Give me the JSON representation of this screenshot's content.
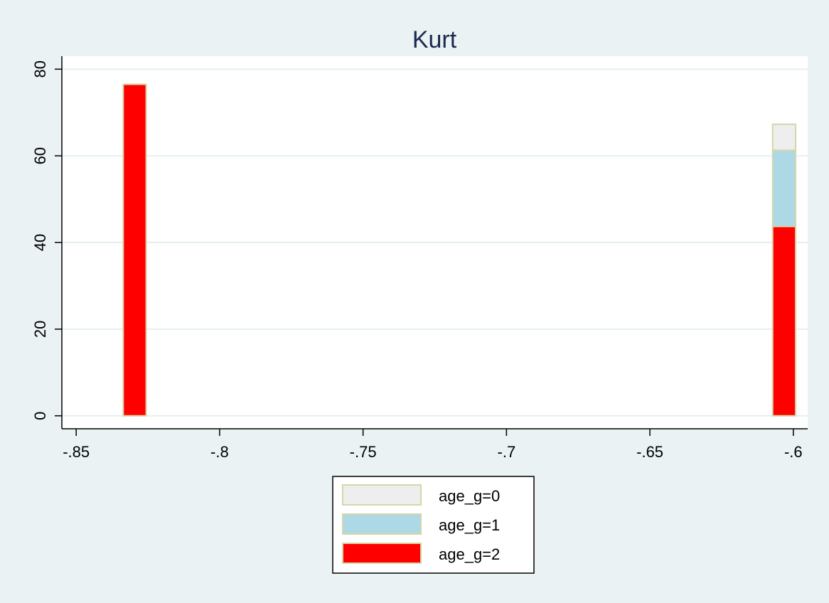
{
  "chart_data": {
    "type": "bar",
    "stacked": true,
    "title": "Kurt",
    "xlabel": "",
    "ylabel": "",
    "xlim": [
      -0.855,
      -0.595
    ],
    "ylim": [
      -3,
      83
    ],
    "x_ticks": [
      -0.85,
      -0.8,
      -0.75,
      -0.7,
      -0.65,
      -0.6
    ],
    "x_tick_labels": [
      "-.85",
      "-.8",
      "-.75",
      "-.7",
      "-.65",
      "-.6"
    ],
    "y_ticks": [
      0,
      20,
      40,
      60,
      80
    ],
    "y_tick_labels": [
      "0",
      "20",
      "40",
      "60",
      "80"
    ],
    "grid": "horizontal",
    "bar_width": 0.008,
    "x": [
      -0.8296,
      -0.6032
    ],
    "series": [
      {
        "name": "age_g=2",
        "color": "#ff0000",
        "values": [
          76.5,
          43.7
        ]
      },
      {
        "name": "age_g=1",
        "color": "#add8e6",
        "values": [
          0,
          17.6
        ]
      },
      {
        "name": "age_g=0",
        "color": "#eeeeee",
        "values": [
          0,
          6.0
        ]
      }
    ],
    "legend": {
      "placement": "bottom-center",
      "entries": [
        "age_g=0",
        "age_g=1",
        "age_g=2"
      ]
    },
    "colors": {
      "background": "#eaf2f3",
      "plot_background": "#ffffff",
      "title": "#1a2a4f",
      "grid": "#e6eff0",
      "bar_outline": "#d6d6a8",
      "axis": "#000000"
    }
  }
}
